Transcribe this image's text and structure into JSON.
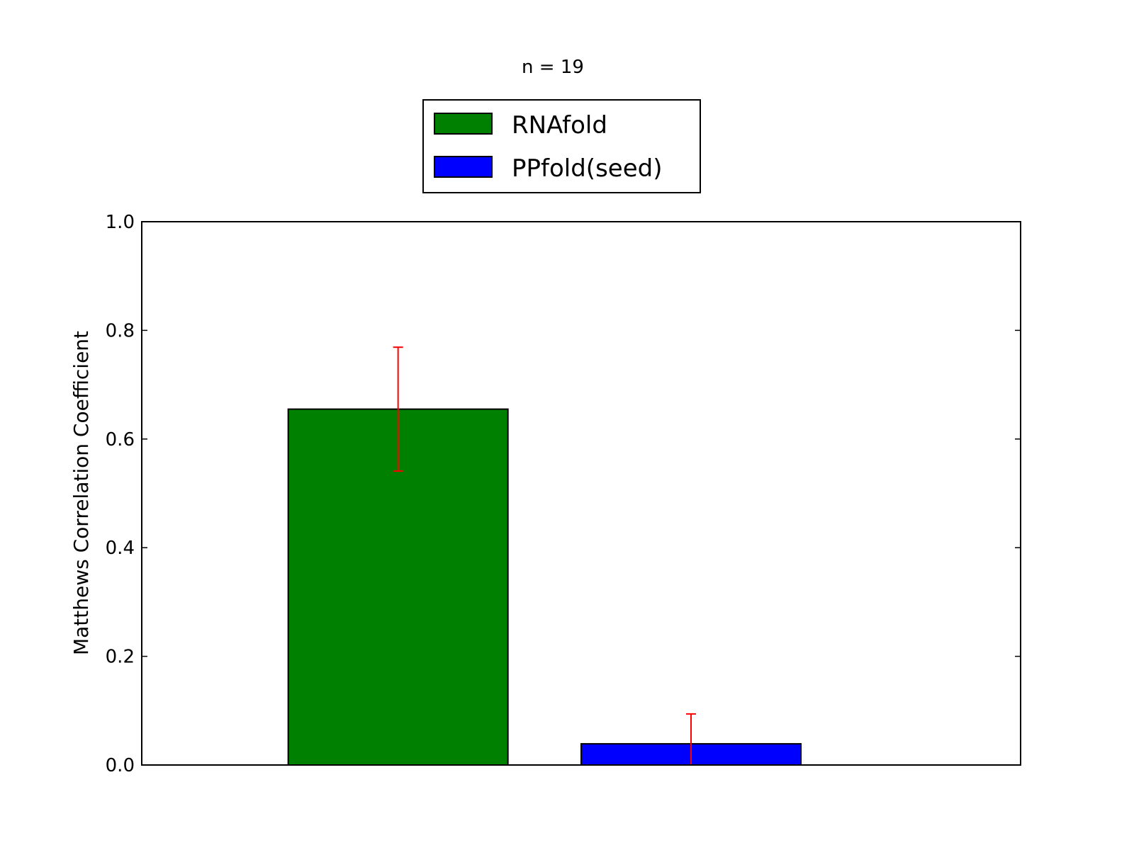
{
  "chart_data": {
    "type": "bar",
    "title": "n = 19",
    "xlabel": "",
    "ylabel": "Matthews Correlation Coefficient",
    "ylim": [
      0,
      1.0
    ],
    "yticks": [
      "0.0",
      "0.2",
      "0.4",
      "0.6",
      "0.8",
      "1.0"
    ],
    "grid": false,
    "legend_position": "top-center, above plot",
    "error_bar_color": "#ff0000",
    "series": [
      {
        "name": "RNAfold",
        "value": 0.655,
        "error": 0.114,
        "color": "#008000"
      },
      {
        "name": "PPfold(seed)",
        "value": 0.039,
        "error": 0.055,
        "color": "#0000ff"
      }
    ]
  }
}
